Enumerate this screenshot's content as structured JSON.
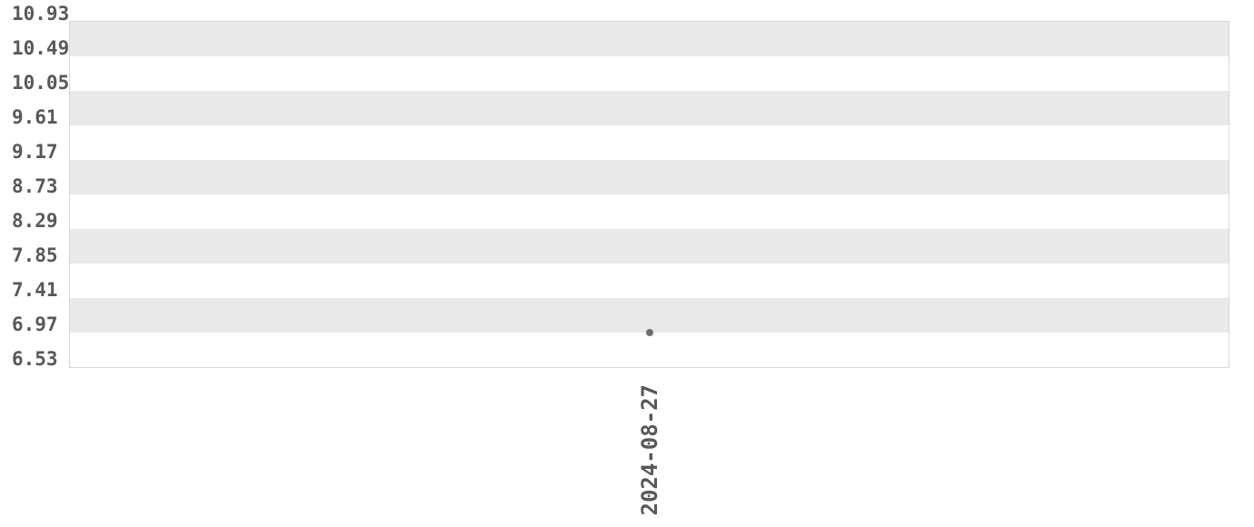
{
  "chart_data": {
    "type": "scatter",
    "title": "",
    "xlabel": "",
    "ylabel": "",
    "x_tick_labels": [
      "2024-08-27"
    ],
    "y_tick_labels": [
      "10.93",
      "10.49",
      "10.05",
      "9.61",
      "9.17",
      "8.73",
      "8.29",
      "7.85",
      "7.41",
      "6.97",
      "6.53"
    ],
    "y_ticks": [
      10.93,
      10.49,
      10.05,
      9.61,
      9.17,
      8.73,
      8.29,
      7.85,
      7.41,
      6.97,
      6.53
    ],
    "ylim": [
      6.53,
      10.93
    ],
    "points": [
      {
        "x": "2024-08-27",
        "y": 6.97
      }
    ],
    "grid": "alternating-horizontal-bands",
    "legend": "none"
  },
  "colors": {
    "background": "#ffffff",
    "band_fill": "#e9e9e9",
    "plot_border": "#d6d6d6",
    "tick_label_color": "#58585a",
    "point_color": "#6f6f6f"
  }
}
